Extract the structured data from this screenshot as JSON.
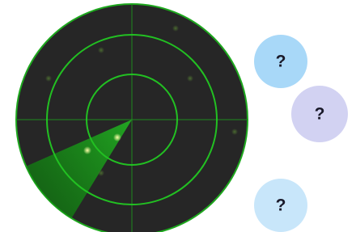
{
  "bubbles": [
    {
      "label": "?"
    },
    {
      "label": "?"
    },
    {
      "label": "?"
    }
  ]
}
